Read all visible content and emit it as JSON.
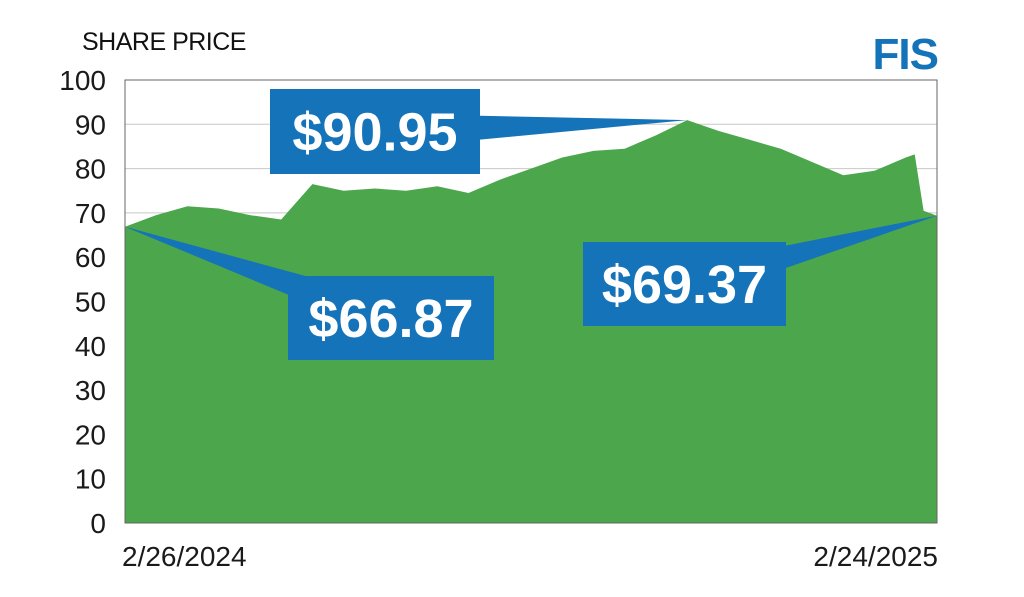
{
  "header": {
    "title": "SHARE PRICE",
    "ticker": "FIS"
  },
  "colors": {
    "area_fill": "#4ca64c",
    "callout_bg": "#1473b9",
    "ticker": "#1473b9",
    "gridline": "#c8c8c8"
  },
  "chart_data": {
    "type": "area",
    "title": "SHARE PRICE",
    "xlabel": "",
    "ylabel": "",
    "ylim": [
      0,
      100
    ],
    "yticks": [
      0,
      10,
      20,
      30,
      40,
      50,
      60,
      70,
      80,
      90,
      100
    ],
    "grid": true,
    "x_tick_labels": [
      "2/26/2024",
      "2/24/2025"
    ],
    "series": [
      {
        "x": [
          "2024-02-26",
          "2024-03-11",
          "2024-03-25",
          "2024-04-08",
          "2024-04-22",
          "2024-05-06",
          "2024-05-20",
          "2024-06-03",
          "2024-06-17",
          "2024-07-01",
          "2024-07-15",
          "2024-07-29",
          "2024-08-12",
          "2024-08-26",
          "2024-09-09",
          "2024-09-23",
          "2024-10-07",
          "2024-10-21",
          "2024-11-04",
          "2024-11-18",
          "2024-12-02",
          "2024-12-16",
          "2024-12-30",
          "2025-01-13",
          "2025-01-27",
          "2025-02-10",
          "2025-02-14",
          "2025-02-18",
          "2025-02-24"
        ],
        "values": [
          66.87,
          69.5,
          71.5,
          71,
          69.5,
          68.5,
          76.5,
          75,
          75.5,
          75,
          76,
          74.5,
          77.5,
          80,
          82.5,
          84,
          84.5,
          87.5,
          90.95,
          88.5,
          86.5,
          84.5,
          81.5,
          78.5,
          79.5,
          82.5,
          83.2,
          70.5,
          69.37
        ]
      }
    ],
    "annotations": [
      {
        "text": "$66.87",
        "x": "2024-02-26",
        "y": 66.87
      },
      {
        "text": "$90.95",
        "x": "2024-11-04",
        "y": 90.95
      },
      {
        "text": "$69.37",
        "x": "2025-02-24",
        "y": 69.37
      }
    ]
  }
}
